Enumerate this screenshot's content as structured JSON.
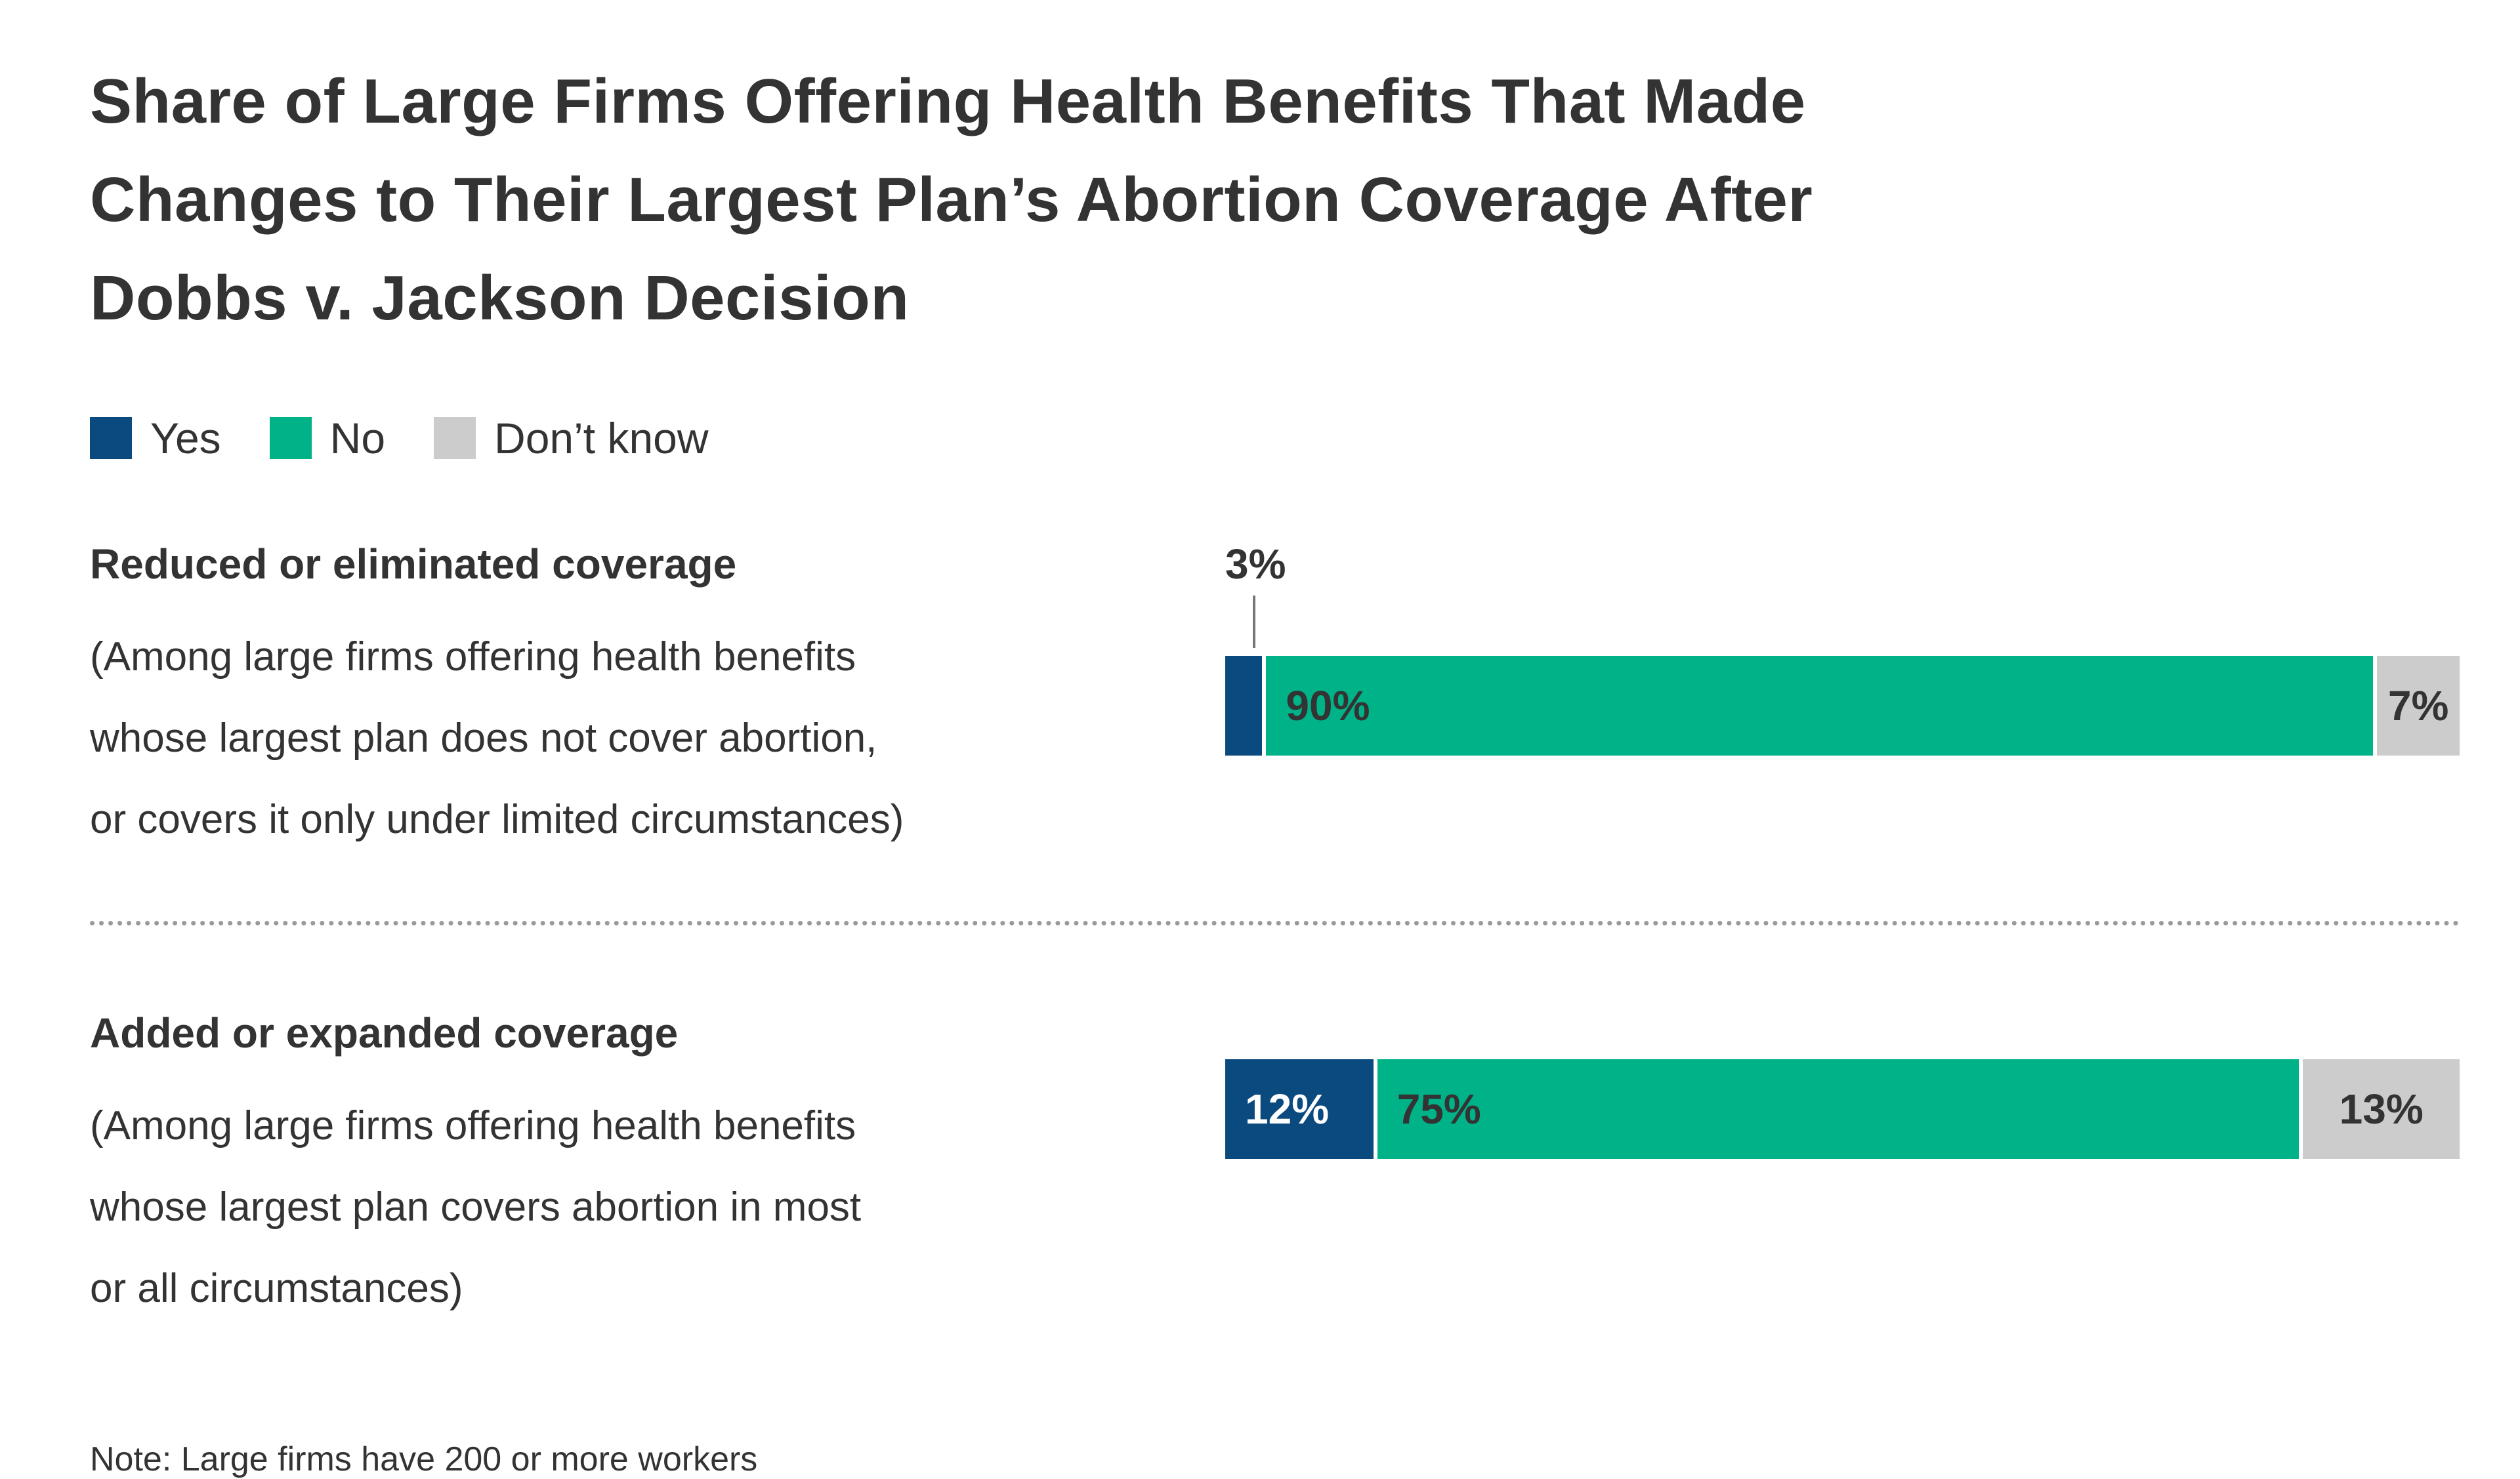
{
  "title": "Share of Large Firms Offering Health Benefits That Made Changes to Their Largest Plan’s Abortion Coverage After Dobbs v. Jackson Decision",
  "title_lines": [
    "Share of Large Firms Offering Health Benefits That Made",
    "Changes to Their Largest Plan’s Abortion Coverage After",
    "Dobbs v. Jackson Decision"
  ],
  "legend": [
    {
      "label": "Yes",
      "color": "#0B4A7E"
    },
    {
      "label": "No",
      "color": "#00B287"
    },
    {
      "label": "Don’t know",
      "color": "#CCCCCC"
    }
  ],
  "note": "Note: Large firms have 200 or more workers",
  "chart_data": {
    "type": "bar",
    "orientation": "horizontal",
    "stacked": true,
    "unit": "percent",
    "x_range": [
      0,
      100
    ],
    "grid": false,
    "legend_position": "top-left",
    "title": "Share of Large Firms Offering Health Benefits That Made Changes to Their Largest Plan’s Abortion Coverage After Dobbs v. Jackson Decision",
    "series_labels": [
      "Yes",
      "No",
      "Don’t know"
    ],
    "rows": [
      {
        "category": "Reduced or eliminated coverage",
        "subtitle": "(Among large firms offering health benefits whose largest plan does not cover abortion, or covers it only under limited circumstances)",
        "subtitle_lines": [
          "(Among large firms offering health benefits",
          "whose largest plan does not cover abortion,",
          "or covers it only under limited circumstances)"
        ],
        "segments": [
          {
            "name": "Yes",
            "value": 3,
            "label": "3%",
            "color": "#0B4A7E",
            "label_inside": false,
            "label_color": "#333333",
            "label_align": "left"
          },
          {
            "name": "No",
            "value": 90,
            "label": "90%",
            "color": "#00B287",
            "label_inside": true,
            "label_color": "#333333",
            "label_align": "left"
          },
          {
            "name": "Don’t know",
            "value": 7,
            "label": "7%",
            "color": "#CCCCCC",
            "label_inside": true,
            "label_color": "#333333",
            "label_align": "center"
          }
        ]
      },
      {
        "category": "Added or expanded coverage",
        "subtitle": "(Among large firms offering health benefits whose largest plan covers abortion in most or all circumstances)",
        "subtitle_lines": [
          "(Among large firms offering health benefits",
          "whose largest plan covers abortion in most",
          "or all circumstances)"
        ],
        "segments": [
          {
            "name": "Yes",
            "value": 12,
            "label": "12%",
            "color": "#0B4A7E",
            "label_inside": true,
            "label_color": "#FFFFFF",
            "label_align": "left"
          },
          {
            "name": "No",
            "value": 75,
            "label": "75%",
            "color": "#00B287",
            "label_inside": true,
            "label_color": "#333333",
            "label_align": "left"
          },
          {
            "name": "Don’t know",
            "value": 13,
            "label": "13%",
            "color": "#CCCCCC",
            "label_inside": true,
            "label_color": "#333333",
            "label_align": "center"
          }
        ]
      }
    ],
    "note": "Note: Large firms have 200 or more workers"
  }
}
